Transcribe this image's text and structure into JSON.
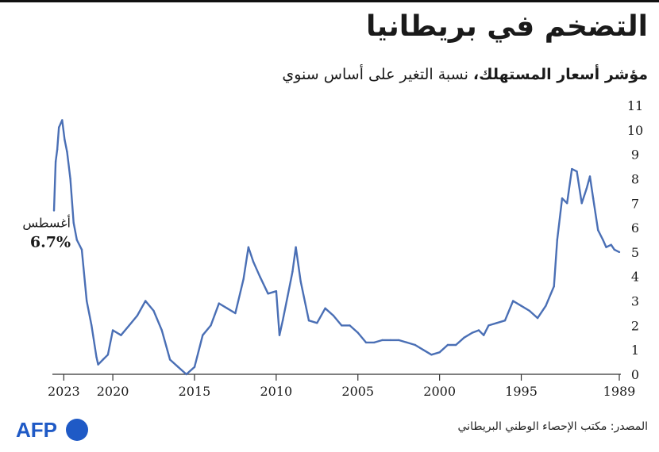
{
  "header": {
    "title": "التضخم في بريطانيا",
    "subtitle_bold": "مؤشر أسعار المستهلك،",
    "subtitle_rest": " نسبة التغير على أساس سنوي"
  },
  "footer": {
    "source": "المصدر: مكتب الإحصاء الوطني البريطاني",
    "logo": "AFP"
  },
  "colors": {
    "line": "#4a6fb5",
    "axis": "#333333",
    "text": "#1a1a1a",
    "logo": "#1f5ac6"
  },
  "chart_data": {
    "type": "line",
    "title": "التضخم في بريطانيا",
    "subtitle": "مؤشر أسعار المستهلك، نسبة التغير على أساس سنوي",
    "x_axis": {
      "reversed": true,
      "range": [
        1989,
        2023.6
      ],
      "ticks": [
        "2023",
        "2020",
        "2015",
        "2010",
        "2005",
        "2000",
        "1995",
        "1989"
      ]
    },
    "y_axis": {
      "range": [
        0,
        11
      ],
      "ticks": [
        0,
        1,
        2,
        3,
        4,
        5,
        6,
        7,
        8,
        9,
        10,
        11
      ],
      "position": "right"
    },
    "grid": false,
    "annotation": {
      "label": "أغسطس",
      "value_label": "6.7%",
      "x": 2023.6,
      "y": 6.7
    },
    "series": [
      {
        "x": [
          1989.0,
          1989.3,
          1989.5,
          1989.8,
          1990.0,
          1990.3,
          1990.6,
          1990.8,
          1991.0,
          1991.3,
          1991.6,
          1991.9,
          1992.2,
          1992.5,
          1992.8,
          1993.0,
          1993.5,
          1994.0,
          1994.5,
          1995.0,
          1995.5,
          1996.0,
          1996.5,
          1997.0,
          1997.3,
          1997.6,
          1998.0,
          1998.5,
          1999.0,
          1999.5,
          2000.0,
          2000.5,
          2001.0,
          2001.5,
          2002.0,
          2002.5,
          2003.0,
          2003.5,
          2004.0,
          2004.5,
          2005.0,
          2005.5,
          2006.0,
          2006.5,
          2007.0,
          2007.5,
          2008.0,
          2008.5,
          2008.8,
          2009.0,
          2009.3,
          2009.6,
          2009.8,
          2010.0,
          2010.5,
          2011.0,
          2011.4,
          2011.7,
          2012.0,
          2012.5,
          2013.0,
          2013.5,
          2014.0,
          2014.5,
          2015.0,
          2015.5,
          2016.0,
          2016.5,
          2017.0,
          2017.5,
          2018.0,
          2018.5,
          2019.0,
          2019.5,
          2020.0,
          2020.3,
          2020.6,
          2020.9,
          2021.0,
          2021.3,
          2021.6,
          2021.9,
          2022.2,
          2022.4,
          2022.6,
          2022.8,
          2022.95,
          2023.1,
          2023.3,
          2023.4,
          2023.5,
          2023.6
        ],
        "y": [
          5.0,
          5.1,
          5.3,
          5.2,
          5.5,
          5.9,
          7.2,
          8.1,
          7.6,
          7.0,
          8.3,
          8.4,
          7.0,
          7.2,
          5.5,
          3.6,
          2.8,
          2.3,
          2.6,
          2.8,
          3.0,
          2.2,
          2.1,
          2.0,
          1.6,
          1.8,
          1.7,
          1.5,
          1.2,
          1.2,
          0.9,
          0.8,
          1.0,
          1.2,
          1.3,
          1.4,
          1.4,
          1.4,
          1.3,
          1.3,
          1.7,
          2.0,
          2.0,
          2.4,
          2.7,
          2.1,
          2.2,
          3.8,
          5.2,
          4.2,
          3.2,
          2.2,
          1.6,
          3.4,
          3.3,
          4.0,
          4.6,
          5.2,
          3.9,
          2.5,
          2.7,
          2.9,
          2.0,
          1.6,
          0.3,
          0.0,
          0.3,
          0.6,
          1.8,
          2.6,
          3.0,
          2.4,
          2.0,
          1.6,
          1.8,
          0.8,
          0.6,
          0.4,
          0.7,
          2.0,
          3.0,
          5.1,
          5.5,
          6.2,
          8.0,
          9.1,
          9.6,
          10.4,
          10.1,
          9.2,
          8.7,
          6.7
        ]
      }
    ]
  }
}
